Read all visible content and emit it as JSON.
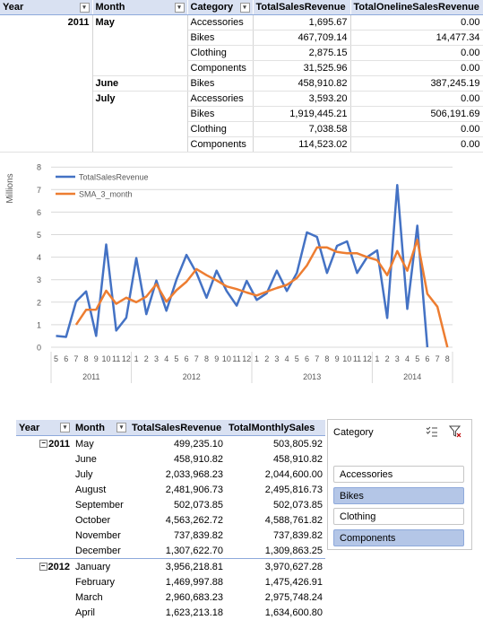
{
  "top_table": {
    "headers": [
      "Year",
      "Month",
      "Category",
      "TotalSalesRevenue",
      "TotalOnelineSalesRevenue"
    ],
    "rows": [
      [
        "2011",
        "May",
        "Accessories",
        "1,695.67",
        "0.00"
      ],
      [
        "",
        "",
        "Bikes",
        "467,709.14",
        "14,477.34"
      ],
      [
        "",
        "",
        "Clothing",
        "2,875.15",
        "0.00"
      ],
      [
        "",
        "",
        "Components",
        "31,525.96",
        "0.00"
      ],
      [
        "",
        "June",
        "Bikes",
        "458,910.82",
        "387,245.19"
      ],
      [
        "",
        "July",
        "Accessories",
        "3,593.20",
        "0.00"
      ],
      [
        "",
        "",
        "Bikes",
        "1,919,445.21",
        "506,191.69"
      ],
      [
        "",
        "",
        "Clothing",
        "7,038.58",
        "0.00"
      ],
      [
        "",
        "",
        "Components",
        "114,523.02",
        "0.00"
      ]
    ]
  },
  "chart_data": {
    "type": "line",
    "ylabel": "Millions",
    "ylim": [
      0,
      8
    ],
    "yticks": [
      "0",
      "1",
      "2",
      "3",
      "4",
      "5",
      "6",
      "7",
      "8"
    ],
    "x_month_labels": [
      "5",
      "6",
      "7",
      "8",
      "9",
      "10",
      "11",
      "12",
      "1",
      "2",
      "3",
      "4",
      "5",
      "6",
      "7",
      "8",
      "9",
      "10",
      "11",
      "12",
      "1",
      "2",
      "3",
      "4",
      "5",
      "6",
      "7",
      "8",
      "9",
      "10",
      "11",
      "12",
      "1",
      "2",
      "3",
      "4",
      "5",
      "6",
      "7",
      "8"
    ],
    "year_groups": [
      {
        "label": "2011",
        "count": 8
      },
      {
        "label": "2012",
        "count": 12
      },
      {
        "label": "2013",
        "count": 12
      },
      {
        "label": "2014",
        "count": 8
      }
    ],
    "legend_position": "top-left",
    "series": [
      {
        "name": "TotalSalesRevenue",
        "color": "#4472c4",
        "values": [
          0.5,
          0.46,
          2.03,
          2.48,
          0.5,
          4.56,
          0.74,
          1.31,
          3.96,
          1.47,
          2.96,
          1.62,
          3.0,
          4.1,
          3.3,
          2.2,
          3.4,
          2.5,
          1.85,
          2.95,
          2.1,
          2.4,
          3.4,
          2.5,
          3.3,
          5.1,
          4.9,
          3.3,
          4.5,
          4.7,
          3.3,
          4.0,
          4.3,
          1.3,
          7.2,
          1.7,
          5.4,
          0.0,
          null,
          null
        ]
      },
      {
        "name": "SMA_3_month",
        "color": "#ed7d31",
        "values": [
          null,
          null,
          1.0,
          1.66,
          1.67,
          2.51,
          1.93,
          2.2,
          2.0,
          2.25,
          2.8,
          2.02,
          2.53,
          2.91,
          3.47,
          3.2,
          2.97,
          2.7,
          2.58,
          2.43,
          2.3,
          2.47,
          2.63,
          2.77,
          3.07,
          3.63,
          4.43,
          4.43,
          4.23,
          4.17,
          4.17,
          4.0,
          3.87,
          3.2,
          4.27,
          3.4,
          4.77,
          2.37,
          1.8,
          0.0
        ]
      }
    ]
  },
  "pivot": {
    "headers": [
      "Year",
      "Month",
      "TotalSalesRevenue",
      "TotalMonthlySales"
    ],
    "rows": [
      {
        "year": "2011",
        "month": "May",
        "rev": "499,235.10",
        "monthly": "503,805.92"
      },
      {
        "year": "",
        "month": "June",
        "rev": "458,910.82",
        "monthly": "458,910.82"
      },
      {
        "year": "",
        "month": "July",
        "rev": "2,033,968.23",
        "monthly": "2,044,600.00"
      },
      {
        "year": "",
        "month": "August",
        "rev": "2,481,906.73",
        "monthly": "2,495,816.73"
      },
      {
        "year": "",
        "month": "September",
        "rev": "502,073.85",
        "monthly": "502,073.85"
      },
      {
        "year": "",
        "month": "October",
        "rev": "4,563,262.72",
        "monthly": "4,588,761.82"
      },
      {
        "year": "",
        "month": "November",
        "rev": "737,839.82",
        "monthly": "737,839.82"
      },
      {
        "year": "",
        "month": "December",
        "rev": "1,307,622.70",
        "monthly": "1,309,863.25"
      },
      {
        "year": "2012",
        "month": "January",
        "rev": "3,956,218.81",
        "monthly": "3,970,627.28"
      },
      {
        "year": "",
        "month": "February",
        "rev": "1,469,997.88",
        "monthly": "1,475,426.91"
      },
      {
        "year": "",
        "month": "March",
        "rev": "2,960,683.23",
        "monthly": "2,975,748.24"
      },
      {
        "year": "",
        "month": "April",
        "rev": "1,623,213.18",
        "monthly": "1,634,600.80"
      }
    ]
  },
  "slicer": {
    "title": "Category",
    "items": [
      {
        "label": "Accessories",
        "selected": false
      },
      {
        "label": "Bikes",
        "selected": true
      },
      {
        "label": "Clothing",
        "selected": false
      },
      {
        "label": "Components",
        "selected": true
      }
    ],
    "icons": [
      "multi-select-icon",
      "clear-filter-icon"
    ],
    "selected_color": "#b4c6e7"
  }
}
